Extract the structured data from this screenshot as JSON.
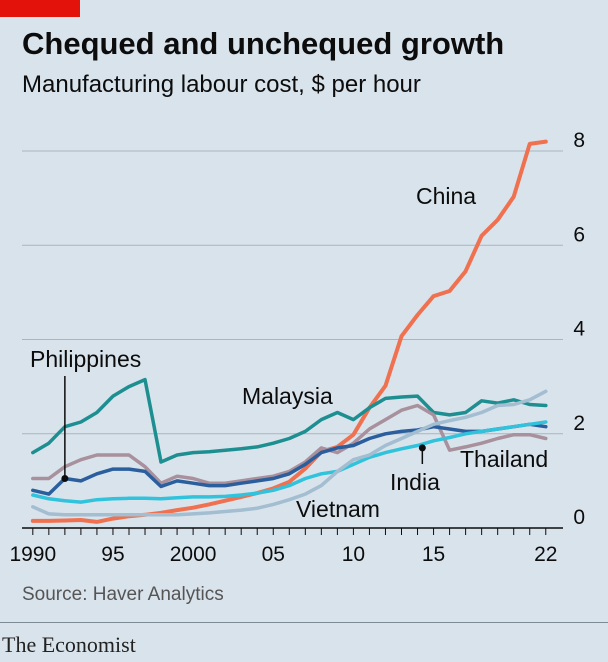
{
  "header": {
    "title": "Chequed and unchequed growth",
    "subtitle": "Manufacturing labour cost, $ per hour"
  },
  "footer": {
    "source": "Source: Haver Analytics",
    "brand": "The Economist"
  },
  "colors": {
    "background": "#d9e3ec",
    "accent_red": "#e3120b",
    "gridline": "#a9b5bf",
    "axis": "#0c0c0c"
  },
  "chart_data": {
    "type": "line",
    "title": "Chequed and unchequed growth",
    "subtitle": "Manufacturing labour cost, $ per hour",
    "xlabel": "",
    "ylabel": "$ per hour",
    "xlim": [
      1989.7,
      2023.2
    ],
    "ylim": [
      0,
      8
    ],
    "y_ticks": [
      0,
      2,
      4,
      6,
      8
    ],
    "x_ticks": [
      {
        "value": 1990,
        "label": "1990"
      },
      {
        "value": 1995,
        "label": "95"
      },
      {
        "value": 2000,
        "label": "2000"
      },
      {
        "value": 2005,
        "label": "05"
      },
      {
        "value": 2010,
        "label": "10"
      },
      {
        "value": 2015,
        "label": "15"
      },
      {
        "value": 2022,
        "label": "22"
      }
    ],
    "x": [
      1990,
      1991,
      1992,
      1993,
      1994,
      1995,
      1996,
      1997,
      1998,
      1999,
      2000,
      2001,
      2002,
      2003,
      2004,
      2005,
      2006,
      2007,
      2008,
      2009,
      2010,
      2011,
      2012,
      2013,
      2014,
      2015,
      2016,
      2017,
      2018,
      2019,
      2020,
      2021,
      2022
    ],
    "series": [
      {
        "name": "China",
        "color": "#f0714f",
        "width": 4,
        "values": [
          0.15,
          0.15,
          0.16,
          0.17,
          0.13,
          0.2,
          0.25,
          0.28,
          0.32,
          0.38,
          0.43,
          0.5,
          0.58,
          0.66,
          0.74,
          0.84,
          0.98,
          1.26,
          1.62,
          1.72,
          1.98,
          2.55,
          3.02,
          4.07,
          4.52,
          4.92,
          5.03,
          5.45,
          6.2,
          6.54,
          7.03,
          8.15,
          8.2
        ]
      },
      {
        "name": "Malaysia",
        "color": "#1e8f91",
        "width": 3.5,
        "values": [
          1.6,
          1.8,
          2.15,
          2.25,
          2.45,
          2.8,
          3.0,
          3.15,
          1.4,
          1.55,
          1.6,
          1.62,
          1.65,
          1.68,
          1.72,
          1.8,
          1.9,
          2.05,
          2.3,
          2.45,
          2.3,
          2.55,
          2.75,
          2.78,
          2.8,
          2.45,
          2.4,
          2.45,
          2.7,
          2.65,
          2.72,
          2.62,
          2.6
        ]
      },
      {
        "name": "Thailand",
        "color": "#a8909c",
        "width": 3.5,
        "values": [
          1.05,
          1.05,
          1.3,
          1.45,
          1.55,
          1.55,
          1.55,
          1.3,
          0.95,
          1.1,
          1.05,
          0.95,
          0.95,
          1.0,
          1.05,
          1.1,
          1.2,
          1.4,
          1.7,
          1.6,
          1.8,
          2.1,
          2.3,
          2.5,
          2.6,
          2.4,
          1.65,
          1.72,
          1.8,
          1.9,
          1.98,
          1.98,
          1.9
        ]
      },
      {
        "name": "Philippines",
        "color": "#2a5e9c",
        "width": 3.5,
        "values": [
          0.8,
          0.72,
          1.05,
          1.0,
          1.15,
          1.25,
          1.25,
          1.2,
          0.88,
          1.0,
          0.95,
          0.9,
          0.9,
          0.95,
          1.0,
          1.05,
          1.15,
          1.35,
          1.6,
          1.7,
          1.75,
          1.9,
          2.0,
          2.05,
          2.08,
          2.15,
          2.1,
          2.05,
          2.05,
          2.1,
          2.15,
          2.2,
          2.15
        ]
      },
      {
        "name": "India",
        "color": "#30c3db",
        "width": 3.5,
        "values": [
          0.7,
          0.62,
          0.58,
          0.55,
          0.6,
          0.62,
          0.63,
          0.63,
          0.62,
          0.64,
          0.66,
          0.66,
          0.67,
          0.7,
          0.74,
          0.8,
          0.9,
          1.05,
          1.15,
          1.2,
          1.35,
          1.5,
          1.6,
          1.68,
          1.75,
          1.85,
          1.92,
          2.0,
          2.05,
          2.1,
          2.15,
          2.2,
          2.25
        ]
      },
      {
        "name": "Vietnam",
        "color": "#a3bdd1",
        "width": 3.5,
        "values": [
          0.45,
          0.3,
          0.28,
          0.28,
          0.28,
          0.28,
          0.28,
          0.28,
          0.28,
          0.28,
          0.3,
          0.32,
          0.35,
          0.38,
          0.42,
          0.5,
          0.6,
          0.72,
          0.9,
          1.2,
          1.45,
          1.55,
          1.75,
          1.9,
          2.05,
          2.2,
          2.28,
          2.35,
          2.45,
          2.6,
          2.62,
          2.72,
          2.9
        ]
      }
    ],
    "annotations": [
      {
        "series": "China",
        "label": "China"
      },
      {
        "series": "Malaysia",
        "label": "Malaysia"
      },
      {
        "series": "Philippines",
        "label": "Philippines"
      },
      {
        "series": "India",
        "label": "India"
      },
      {
        "series": "Thailand",
        "label": "Thailand"
      },
      {
        "series": "Vietnam",
        "label": "Vietnam"
      }
    ]
  }
}
